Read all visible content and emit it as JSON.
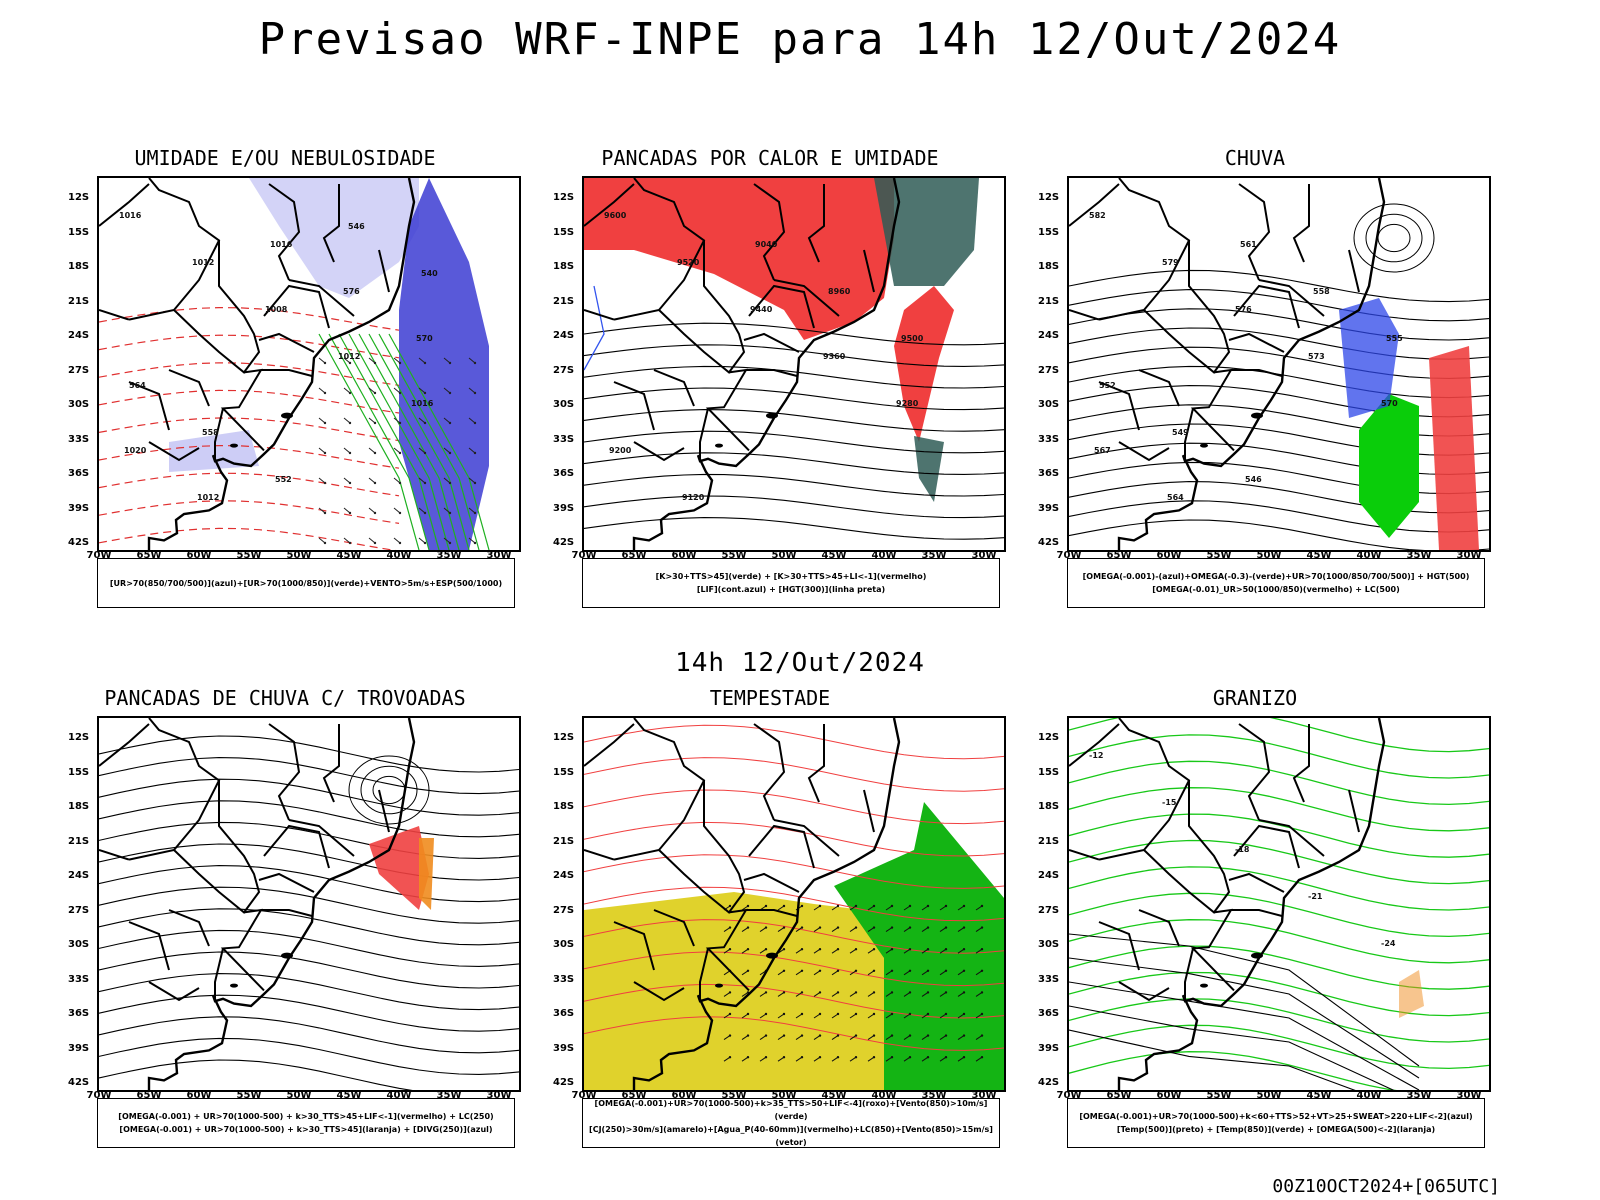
{
  "header": {
    "title": "Previsao WRF-INPE  para 14h 12/Out/2024",
    "mid_title": "14h 12/Out/2024",
    "footer": "00Z10OCT2024+[065UTC]"
  },
  "axes": {
    "lat_labels": [
      "12S",
      "15S",
      "18S",
      "21S",
      "24S",
      "27S",
      "30S",
      "33S",
      "36S",
      "39S",
      "42S"
    ],
    "lon_labels": [
      "70W",
      "65W",
      "60W",
      "55W",
      "50W",
      "45W",
      "40W",
      "35W",
      "30W"
    ]
  },
  "panels": [
    {
      "id": "umidade",
      "title": "UMIDADE E/OU NEBULOSIDADE",
      "legend_lines": [
        "[UR>70(850/700/500)](azul)+[UR>70(1000/850)](verde)+VENTO>5m/s+ESP(500/1000)"
      ],
      "contour_labels": [
        "1016",
        "1012",
        "1008",
        "1012",
        "1016",
        "1020",
        "1012",
        "1016",
        "576",
        "570",
        "564",
        "558",
        "552",
        "546",
        "540"
      ]
    },
    {
      "id": "pancadas-calor",
      "title": "PANCADAS POR CALOR E UMIDADE",
      "legend_lines": [
        "[K>30+TTS>45](verde) + [K>30+TTS>45+LI<-1](vermelho)",
        "[LIF](cont.azul) + [HGT(300)](linha preta)"
      ],
      "contour_labels": [
        "9600",
        "9520",
        "9440",
        "9360",
        "9280",
        "9200",
        "9120",
        "9040",
        "8960",
        "9500"
      ]
    },
    {
      "id": "chuva",
      "title": "CHUVA",
      "legend_lines": [
        "[OMEGA(-0.001)-(azul)+OMEGA(-0.3)-(verde)+UR>70(1000/850/700/500)] + HGT(500)",
        "[OMEGA(-0.01)_UR>50(1000/850)(vermelho) + LC(500)"
      ],
      "contour_labels": [
        "582",
        "579",
        "576",
        "573",
        "570",
        "567",
        "564",
        "561",
        "558",
        "555",
        "552",
        "549",
        "546"
      ]
    },
    {
      "id": "pancadas-trovoadas",
      "title": "PANCADAS DE CHUVA C/ TROVOADAS",
      "legend_lines": [
        "[OMEGA(-0.001) + UR>70(1000-500) + k>30_TTS>45+LIF<-1](vermelho) + LC(250)",
        "[OMEGA(-0.001) + UR>70(1000-500) + k>30_TTS>45](laranja) + [DIVG(250)](azul)"
      ],
      "contour_labels": []
    },
    {
      "id": "tempestade",
      "title": "TEMPESTADE",
      "legend_lines": [
        "[OMEGA(-0.001)+UR>70(1000-500)+k>35_TTS>50+LIF<-4](roxo)+[Vento(850)>10m/s](verde)",
        "[CJ(250)>30m/s](amarelo)+[Agua_P(40-60mm)](vermelho)+LC(850)+[Vento(850)>15m/s](vetor)"
      ],
      "contour_labels": []
    },
    {
      "id": "granizo",
      "title": "GRANIZO",
      "legend_lines": [
        "[OMEGA(-0.001)+UR>70(1000-500)+k<60+TTS>52+VT>25+SWEAT>220+LIF<-2](azul)",
        "[Temp(500)](preto) + [Temp(850)](verde) + [OMEGA(500)<-2](laranja)"
      ],
      "contour_labels": [
        "-12",
        "-15",
        "-18",
        "-21",
        "-24"
      ]
    }
  ]
}
